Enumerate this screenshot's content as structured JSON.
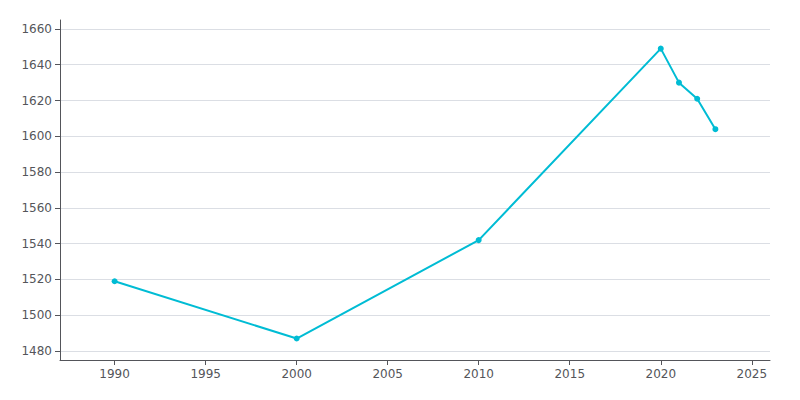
{
  "chart_data": {
    "type": "line",
    "x": [
      1990,
      2000,
      2010,
      2020,
      2021,
      2022,
      2023
    ],
    "values": [
      1519,
      1487,
      1542,
      1649,
      1630,
      1621,
      1604
    ],
    "color": "#00bcd4",
    "marker": "circle",
    "xlim": [
      1987,
      2026
    ],
    "xticks": [
      1990,
      1995,
      2000,
      2005,
      2010,
      2015,
      2020,
      2025
    ],
    "ylim": [
      1475,
      1665
    ],
    "yticks": [
      1480,
      1500,
      1520,
      1540,
      1560,
      1580,
      1600,
      1620,
      1640,
      1660
    ],
    "grid": true
  }
}
